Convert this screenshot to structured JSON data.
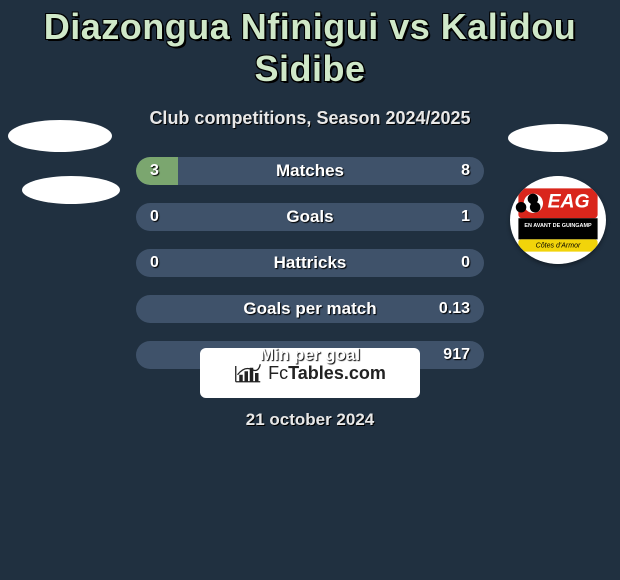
{
  "colors": {
    "bg": "#203040",
    "title": "#cfe8c8",
    "pill_bg": "#3f526a",
    "fill": "#7ba66f",
    "white": "#ffffff"
  },
  "header": {
    "title": "Diazongua Nfinigui vs Kalidou Sidibe",
    "subtitle": "Club competitions, Season 2024/2025"
  },
  "rows": [
    {
      "label": "Matches",
      "left": "3",
      "right": "8",
      "fill_left_pct": 12,
      "fill_right_pct": 0
    },
    {
      "label": "Goals",
      "left": "0",
      "right": "1",
      "fill_left_pct": 0,
      "fill_right_pct": 0
    },
    {
      "label": "Hattricks",
      "left": "0",
      "right": "0",
      "fill_left_pct": 0,
      "fill_right_pct": 0
    },
    {
      "label": "Goals per match",
      "left": "",
      "right": "0.13",
      "fill_left_pct": 0,
      "fill_right_pct": 0
    },
    {
      "label": "Min per goal",
      "left": "",
      "right": "917",
      "fill_left_pct": 0,
      "fill_right_pct": 0
    }
  ],
  "badge": {
    "top_text": "EAG",
    "mid_text": "EN AVANT DE GUINGAMP",
    "bottom_text": "Côtes d'Armor",
    "colors": {
      "red": "#d9261c",
      "black": "#000000",
      "white": "#ffffff",
      "yellow": "#f2d40a"
    }
  },
  "footer": {
    "brand_prefix": "Fc",
    "brand_suffix": "Tables.com",
    "date": "21 october 2024"
  }
}
